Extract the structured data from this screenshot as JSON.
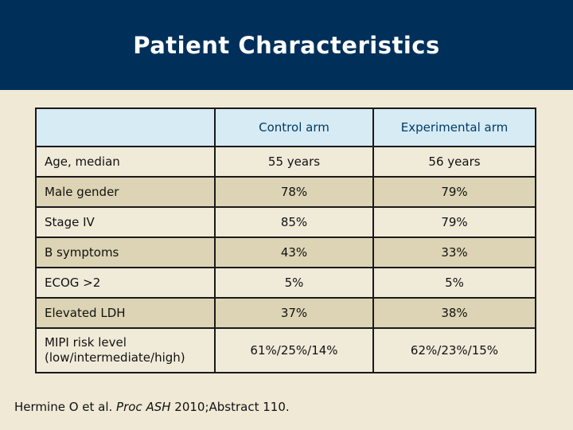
{
  "slide": {
    "title": "Patient Characteristics",
    "citation": {
      "prefix": "Hermine O et al. ",
      "journal": "Proc ASH",
      "suffix": " 2010;Abstract 110."
    }
  },
  "table": {
    "columns": [
      "",
      "Control arm",
      "Experimental arm"
    ],
    "rows": [
      {
        "label": "Age, median",
        "control": "55 years",
        "experimental": "56 years"
      },
      {
        "label": "Male gender",
        "control": "78%",
        "experimental": "79%"
      },
      {
        "label": "Stage IV",
        "control": "85%",
        "experimental": "79%"
      },
      {
        "label": "B symptoms",
        "control": "43%",
        "experimental": "33%"
      },
      {
        "label": "ECOG >2",
        "control": "5%",
        "experimental": "5%"
      },
      {
        "label": "Elevated LDH",
        "control": "37%",
        "experimental": "38%"
      },
      {
        "label": "MIPI risk level (low/intermediate/high)",
        "control": "61%/25%/14%",
        "experimental": "62%/23%/15%"
      }
    ]
  },
  "colors": {
    "band_navy": "#00305a",
    "background_beige": "#efe9d6",
    "header_blue": "#d6ebf4",
    "header_text_navy": "#003a66",
    "row_tan": "#dcd4b4",
    "row_light": "#f0ead9",
    "border": "#1a1a1a",
    "title_text": "#ffffff"
  }
}
